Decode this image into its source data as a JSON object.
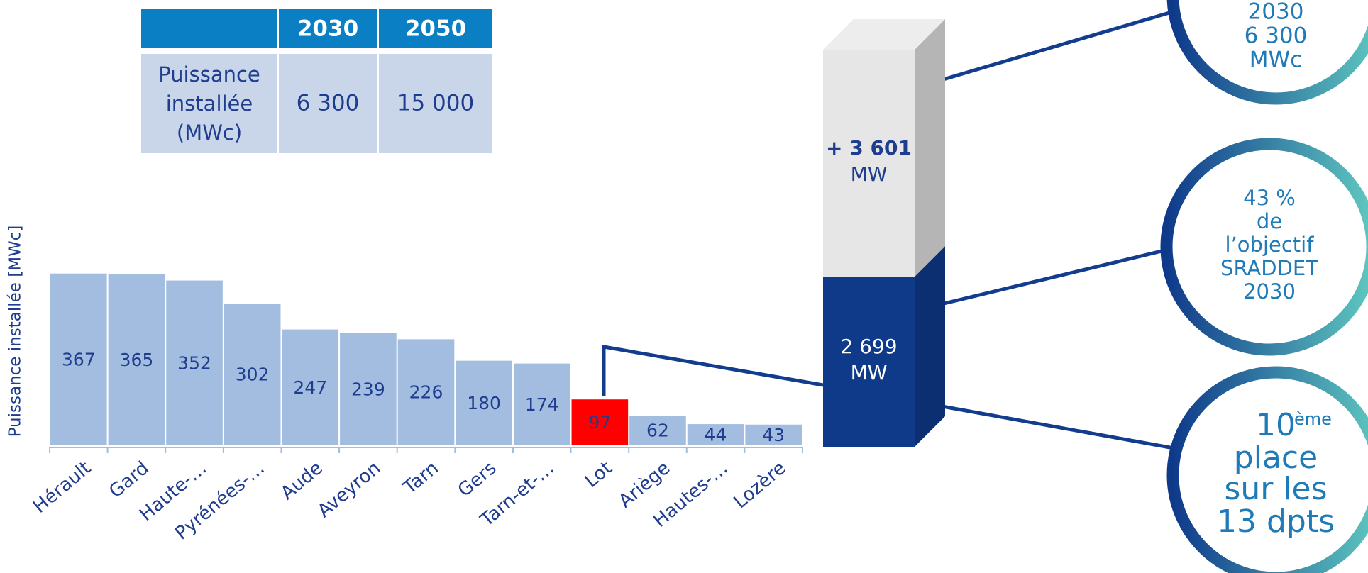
{
  "chart_data": [
    {
      "type": "bar",
      "y_label": "Puissance installée [MWc]",
      "categories": [
        "Hérault",
        "Gard",
        "Haute-…",
        "Pyrénées-…",
        "Aude",
        "Aveyron",
        "Tarn",
        "Gers",
        "Tarn-et-…",
        "Lot",
        "Ariège",
        "Hautes-…",
        "Lozère"
      ],
      "values": [
        367,
        365,
        352,
        302,
        247,
        239,
        226,
        180,
        174,
        97,
        62,
        44,
        43
      ],
      "colors": [
        "#a3bde0",
        "#a3bde0",
        "#a3bde0",
        "#a3bde0",
        "#a3bde0",
        "#a3bde0",
        "#a3bde0",
        "#a3bde0",
        "#a3bde0",
        "#ff0000",
        "#a3bde0",
        "#a3bde0",
        "#a3bde0"
      ],
      "ylim": [
        0,
        400
      ]
    },
    {
      "type": "stacked_bar_3d",
      "values": [
        2699,
        3601
      ],
      "value_labels": [
        "2 699",
        "+ 3 601"
      ],
      "unit": "MW",
      "colors": [
        "#0f3a8a",
        "#e6e6e6"
      ],
      "ylim": [
        0,
        6300
      ]
    }
  ],
  "table": {
    "columns": [
      "2030",
      "2050"
    ],
    "rows": [
      {
        "label": [
          "Puissance",
          "installée",
          "(MWc)"
        ],
        "values": [
          "6 300",
          "15 000"
        ]
      }
    ]
  },
  "circles": [
    {
      "lines": [
        "2030",
        "6 300",
        "MWc"
      ]
    },
    {
      "lines": [
        "43 %",
        "de",
        "l’objectif",
        "SRADDET",
        "2030"
      ]
    },
    {
      "lines": [
        "10",
        "place",
        "sur les",
        "13 dpts"
      ],
      "sup": "ème"
    }
  ]
}
